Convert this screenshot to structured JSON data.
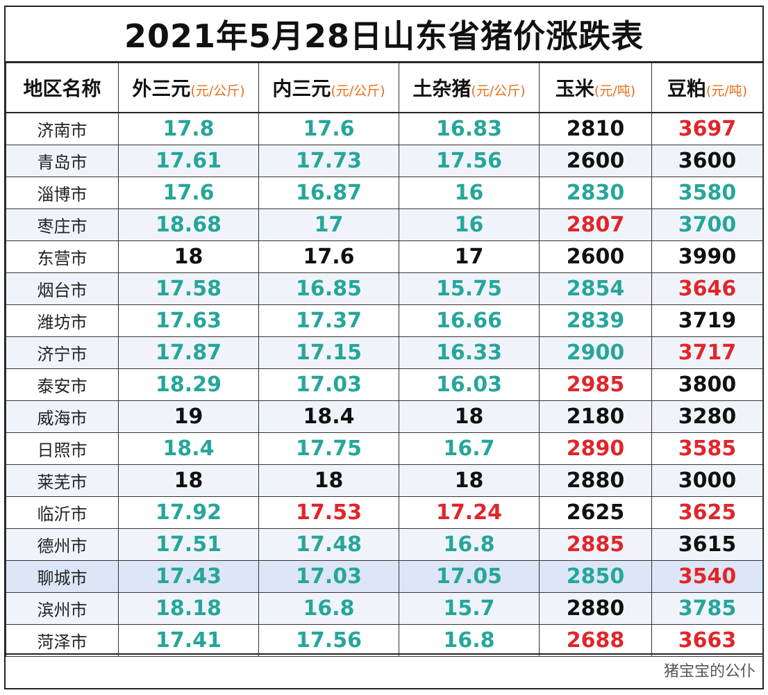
{
  "title": "2021年5月28日山东省猪价涨跌表",
  "headers": [
    {
      "name": "地区名称",
      "unit": ""
    },
    {
      "name": "外三元",
      "unit": "(元/公斤)"
    },
    {
      "name": "内三元",
      "unit": "(元/公斤)"
    },
    {
      "name": "土杂猪",
      "unit": "(元/公斤)"
    },
    {
      "name": "玉米",
      "unit": "(元/吨)"
    },
    {
      "name": "豆粕",
      "unit": "(元/吨)"
    }
  ],
  "colors": {
    "teal": "#26a69a",
    "black": "#111111",
    "red": "#e0262b",
    "unit_orange": "#e8701a"
  },
  "rows": [
    {
      "city": "济南市",
      "cells": [
        [
          "17.8",
          "teal"
        ],
        [
          "17.6",
          "teal"
        ],
        [
          "16.83",
          "teal"
        ],
        [
          "2810",
          "black"
        ],
        [
          "3697",
          "red"
        ]
      ]
    },
    {
      "city": "青岛市",
      "cells": [
        [
          "17.61",
          "teal"
        ],
        [
          "17.73",
          "teal"
        ],
        [
          "17.56",
          "teal"
        ],
        [
          "2600",
          "black"
        ],
        [
          "3600",
          "black"
        ]
      ]
    },
    {
      "city": "淄博市",
      "cells": [
        [
          "17.6",
          "teal"
        ],
        [
          "16.87",
          "teal"
        ],
        [
          "16",
          "teal"
        ],
        [
          "2830",
          "teal"
        ],
        [
          "3580",
          "teal"
        ]
      ]
    },
    {
      "city": "枣庄市",
      "cells": [
        [
          "18.68",
          "teal"
        ],
        [
          "17",
          "teal"
        ],
        [
          "16",
          "teal"
        ],
        [
          "2807",
          "red"
        ],
        [
          "3700",
          "teal"
        ]
      ]
    },
    {
      "city": "东营市",
      "cells": [
        [
          "18",
          "black"
        ],
        [
          "17.6",
          "black"
        ],
        [
          "17",
          "black"
        ],
        [
          "2600",
          "black"
        ],
        [
          "3990",
          "black"
        ]
      ]
    },
    {
      "city": "烟台市",
      "cells": [
        [
          "17.58",
          "teal"
        ],
        [
          "16.85",
          "teal"
        ],
        [
          "15.75",
          "teal"
        ],
        [
          "2854",
          "teal"
        ],
        [
          "3646",
          "red"
        ]
      ]
    },
    {
      "city": "潍坊市",
      "cells": [
        [
          "17.63",
          "teal"
        ],
        [
          "17.37",
          "teal"
        ],
        [
          "16.66",
          "teal"
        ],
        [
          "2839",
          "teal"
        ],
        [
          "3719",
          "black"
        ]
      ]
    },
    {
      "city": "济宁市",
      "cells": [
        [
          "17.87",
          "teal"
        ],
        [
          "17.15",
          "teal"
        ],
        [
          "16.33",
          "teal"
        ],
        [
          "2900",
          "teal"
        ],
        [
          "3717",
          "red"
        ]
      ]
    },
    {
      "city": "泰安市",
      "cells": [
        [
          "18.29",
          "teal"
        ],
        [
          "17.03",
          "teal"
        ],
        [
          "16.03",
          "teal"
        ],
        [
          "2985",
          "red"
        ],
        [
          "3800",
          "black"
        ]
      ]
    },
    {
      "city": "威海市",
      "cells": [
        [
          "19",
          "black"
        ],
        [
          "18.4",
          "black"
        ],
        [
          "18",
          "black"
        ],
        [
          "2180",
          "black"
        ],
        [
          "3280",
          "black"
        ]
      ]
    },
    {
      "city": "日照市",
      "cells": [
        [
          "18.4",
          "teal"
        ],
        [
          "17.75",
          "teal"
        ],
        [
          "16.7",
          "teal"
        ],
        [
          "2890",
          "red"
        ],
        [
          "3585",
          "red"
        ]
      ]
    },
    {
      "city": "莱芜市",
      "cells": [
        [
          "18",
          "black"
        ],
        [
          "18",
          "black"
        ],
        [
          "18",
          "black"
        ],
        [
          "2880",
          "black"
        ],
        [
          "3000",
          "black"
        ]
      ]
    },
    {
      "city": "临沂市",
      "cells": [
        [
          "17.92",
          "teal"
        ],
        [
          "17.53",
          "red"
        ],
        [
          "17.24",
          "red"
        ],
        [
          "2625",
          "black"
        ],
        [
          "3625",
          "red"
        ]
      ]
    },
    {
      "city": "德州市",
      "cells": [
        [
          "17.51",
          "teal"
        ],
        [
          "17.48",
          "teal"
        ],
        [
          "16.8",
          "teal"
        ],
        [
          "2885",
          "red"
        ],
        [
          "3615",
          "black"
        ]
      ]
    },
    {
      "city": "聊城市",
      "cells": [
        [
          "17.43",
          "teal"
        ],
        [
          "17.03",
          "teal"
        ],
        [
          "17.05",
          "teal"
        ],
        [
          "2850",
          "teal"
        ],
        [
          "3540",
          "red"
        ]
      ],
      "selected": true
    },
    {
      "city": "滨州市",
      "cells": [
        [
          "18.18",
          "teal"
        ],
        [
          "16.8",
          "teal"
        ],
        [
          "15.7",
          "teal"
        ],
        [
          "2880",
          "black"
        ],
        [
          "3785",
          "teal"
        ]
      ]
    },
    {
      "city": "菏泽市",
      "cells": [
        [
          "17.41",
          "teal"
        ],
        [
          "17.56",
          "teal"
        ],
        [
          "16.8",
          "teal"
        ],
        [
          "2688",
          "red"
        ],
        [
          "3663",
          "red"
        ]
      ]
    }
  ],
  "watermark": "猪宝宝的公仆"
}
